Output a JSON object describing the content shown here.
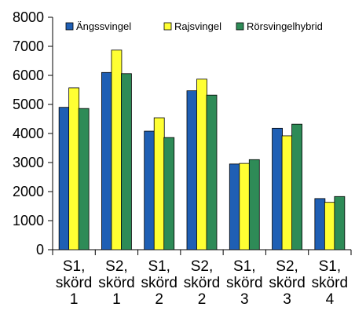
{
  "chart_data": {
    "type": "bar",
    "categories": [
      [
        "S1,",
        "skörd",
        "1"
      ],
      [
        "S2,",
        "skörd",
        "1"
      ],
      [
        "S1,",
        "skörd",
        "2"
      ],
      [
        "S2,",
        "skörd",
        "2"
      ],
      [
        "S1,",
        "skörd",
        "3"
      ],
      [
        "S2,",
        "skörd",
        "3"
      ],
      [
        "S1,",
        "skörd",
        "4"
      ]
    ],
    "series": [
      {
        "name": "Ängssvingel",
        "color": "#1f5fb4",
        "values": [
          4900,
          6100,
          4080,
          5470,
          2950,
          4180,
          1760
        ]
      },
      {
        "name": "Rajsvingel",
        "color": "#ffff33",
        "values": [
          5570,
          6870,
          4540,
          5870,
          2970,
          3920,
          1630
        ]
      },
      {
        "name": "Rörsvingelhybrid",
        "color": "#2e8b57",
        "values": [
          4860,
          6060,
          3860,
          5320,
          3100,
          4320,
          1830
        ]
      }
    ],
    "ylim": [
      0,
      8000
    ],
    "yticks": [
      0,
      1000,
      2000,
      3000,
      4000,
      5000,
      6000,
      7000,
      8000
    ],
    "title": "",
    "xlabel": "",
    "ylabel": "",
    "grid": false,
    "legend_position": "top"
  }
}
